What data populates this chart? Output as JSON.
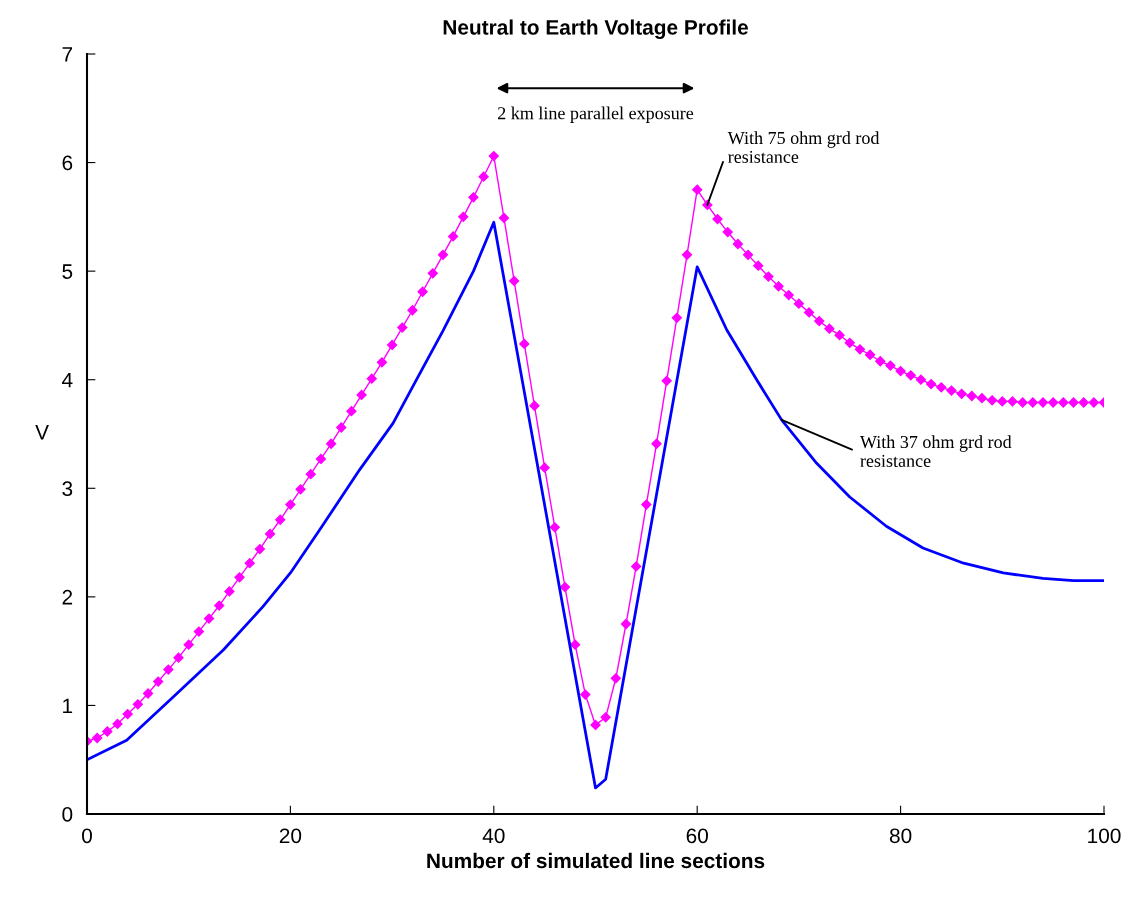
{
  "chart_data": {
    "type": "line",
    "title": "Neutral to Earth Voltage Profile",
    "xlabel": "Number of simulated line sections",
    "ylabel": "V",
    "xlim": [
      0,
      100
    ],
    "xticks": [
      0,
      20,
      40,
      60,
      80,
      100
    ],
    "ylim": [
      0,
      7
    ],
    "yticks": [
      0,
      1,
      2,
      3,
      4,
      5,
      6,
      7
    ],
    "grid": false,
    "legend": false,
    "annotations": [
      "2 km line parallel exposure"
    ],
    "series": [
      {
        "name": "With 75 ohm grd rod resistance",
        "color": "#ff00ff",
        "marker": "diamond",
        "x": [
          0,
          1,
          2,
          3,
          4,
          5,
          6,
          7,
          8,
          9,
          10,
          11,
          12,
          13,
          14,
          15,
          16,
          17,
          18,
          19,
          20,
          21,
          22,
          23,
          24,
          25,
          26,
          27,
          28,
          29,
          30,
          31,
          32,
          33,
          34,
          35,
          36,
          37,
          38,
          39,
          40,
          41,
          42,
          43,
          44,
          45,
          46,
          47,
          48,
          49,
          50,
          51,
          52,
          53,
          54,
          55,
          56,
          57,
          58,
          59,
          60,
          61,
          62,
          63,
          64,
          65,
          66,
          67,
          68,
          69,
          70,
          71,
          72,
          73,
          74,
          75,
          76,
          77,
          78,
          79,
          80,
          81,
          82,
          83,
          84,
          85,
          86,
          87,
          88,
          89,
          90,
          91,
          92,
          93,
          94,
          95,
          96,
          97,
          98,
          99,
          100
        ],
        "values": [
          0.67,
          0.7,
          0.76,
          0.83,
          0.92,
          1.01,
          1.11,
          1.22,
          1.33,
          1.44,
          1.56,
          1.68,
          1.8,
          1.92,
          2.05,
          2.18,
          2.31,
          2.44,
          2.58,
          2.71,
          2.85,
          2.99,
          3.13,
          3.27,
          3.41,
          3.56,
          3.71,
          3.86,
          4.01,
          4.16,
          4.32,
          4.48,
          4.64,
          4.81,
          4.98,
          5.15,
          5.32,
          5.5,
          5.68,
          5.87,
          6.06,
          5.49,
          4.91,
          4.33,
          3.76,
          3.19,
          2.64,
          2.09,
          1.56,
          1.1,
          0.82,
          0.89,
          1.25,
          1.75,
          2.28,
          2.85,
          3.41,
          3.99,
          4.57,
          5.15,
          5.75,
          5.61,
          5.48,
          5.36,
          5.25,
          5.15,
          5.05,
          4.95,
          4.86,
          4.78,
          4.7,
          4.62,
          4.54,
          4.47,
          4.41,
          4.34,
          4.28,
          4.23,
          4.17,
          4.13,
          4.08,
          4.04,
          4.0,
          3.96,
          3.93,
          3.9,
          3.87,
          3.85,
          3.83,
          3.81,
          3.8,
          3.8,
          3.79,
          3.79,
          3.79,
          3.79,
          3.79,
          3.79,
          3.79,
          3.79,
          3.79
        ]
      },
      {
        "name": "With 37 ohm grd rod resistance",
        "color": "#0000ff",
        "marker": "none",
        "x": [
          0,
          3.9,
          8.5,
          13.4,
          17.3,
          20,
          22.9,
          26.8,
          30.1,
          32.4,
          35,
          38,
          40,
          50,
          51,
          60,
          62.9,
          65.85,
          68.3,
          71.75,
          75,
          78.6,
          82.2,
          86.2,
          90.1,
          94,
          97,
          100
        ],
        "values": [
          0.5,
          0.68,
          1.08,
          1.51,
          1.91,
          2.22,
          2.62,
          3.17,
          3.6,
          4.0,
          4.45,
          5.0,
          5.45,
          0.24,
          0.32,
          5.04,
          4.46,
          4.0,
          3.63,
          3.23,
          2.92,
          2.65,
          2.45,
          2.31,
          2.22,
          2.17,
          2.15,
          2.15
        ]
      }
    ]
  }
}
